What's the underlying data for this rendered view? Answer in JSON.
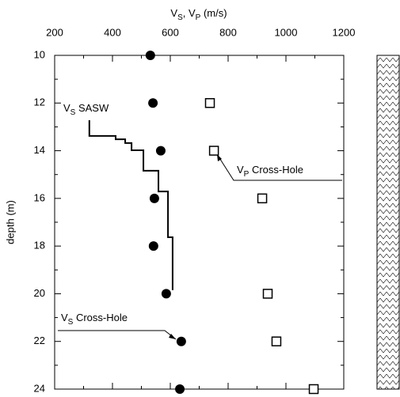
{
  "chart_data": {
    "type": "scatter",
    "x_label": {
      "a": "V",
      "a_sub": "S",
      "b": ", V",
      "b_sub": "P",
      "c": " (m/s)"
    },
    "y_label": "depth (m)",
    "xlim": [
      200,
      1200
    ],
    "xticks": [
      200,
      400,
      600,
      800,
      1000,
      1200
    ],
    "ylim": [
      10,
      24
    ],
    "yticks": [
      10,
      12,
      14,
      16,
      18,
      20,
      22,
      24
    ],
    "y_inverted": true,
    "series": [
      {
        "name": {
          "a": "V",
          "sub": "S",
          "rest": " SASW"
        },
        "kind": "step-line",
        "color": "#000000",
        "x": [
          320,
          320,
          411,
          411,
          444,
          444,
          466,
          466,
          507,
          507,
          559,
          559,
          592,
          592,
          608,
          608
        ],
        "y": [
          12.72,
          13.38,
          13.38,
          13.52,
          13.52,
          13.68,
          13.68,
          13.98,
          13.98,
          14.84,
          14.84,
          15.71,
          15.71,
          17.63,
          17.63,
          19.85
        ]
      },
      {
        "name": {
          "a": "V",
          "sub": "P",
          "rest": " Cross-Hole"
        },
        "kind": "open-square",
        "color": "#000000",
        "x": [
          737,
          751,
          918,
          937,
          967,
          1096
        ],
        "y": [
          12,
          14,
          16,
          20,
          22,
          24
        ]
      },
      {
        "name": {
          "a": "V",
          "sub": "S",
          "rest": " Cross-Hole"
        },
        "kind": "filled-circle",
        "color": "#000000",
        "x": [
          531,
          540,
          567,
          545,
          542,
          586,
          638,
          633
        ],
        "y": [
          10,
          12,
          14,
          16,
          18,
          20,
          22,
          24
        ]
      }
    ]
  }
}
